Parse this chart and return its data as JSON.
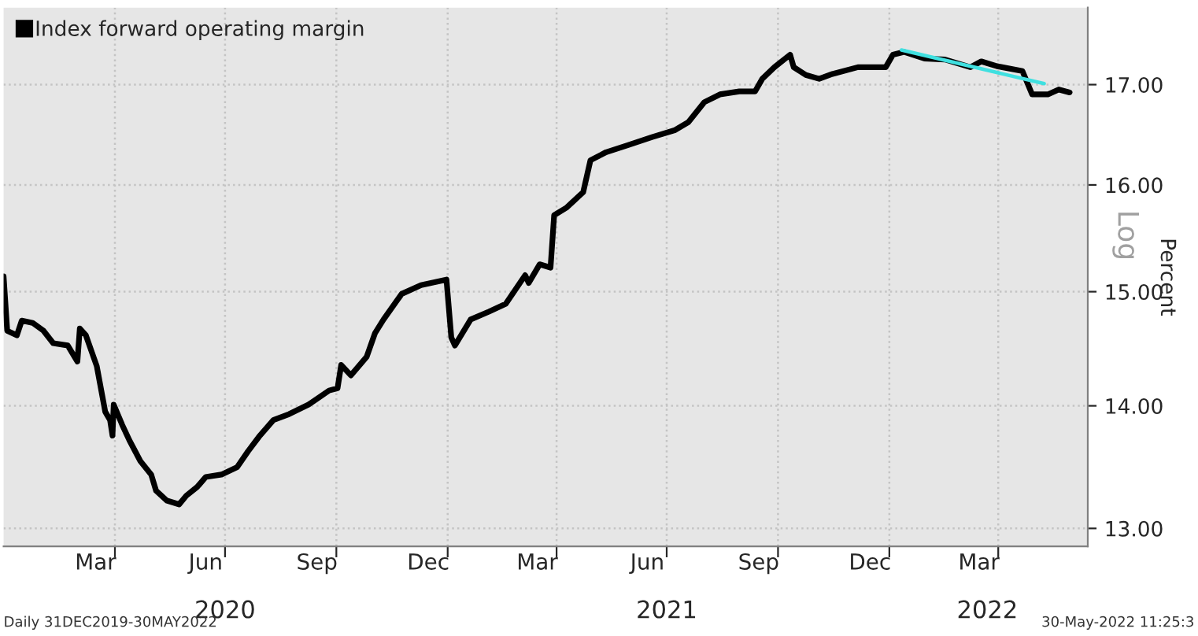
{
  "chart_data": {
    "type": "line",
    "ylabel": "Percent",
    "log": "y",
    "legend": "top left",
    "grid": true,
    "annotations": [
      "Daily 31DEC2019-30MAY2022",
      "30-May-2022 11:25:3",
      "Log"
    ],
    "xlim": [
      "2019-12-31",
      "2022-06-14"
    ],
    "xticks": [
      {
        "value": "2020-03-16",
        "label": "Mar"
      },
      {
        "value": "2020-04-01",
        "label": null
      },
      {
        "value": "2020-06-15",
        "label": "Jun"
      },
      {
        "value": "2020-07-01",
        "label": null
      },
      {
        "value": "2020-09-15",
        "label": "Sep"
      },
      {
        "value": "2020-10-01",
        "label": null
      },
      {
        "value": "2020-12-16",
        "label": "Dec"
      },
      {
        "value": "2021-01-01",
        "label": null
      },
      {
        "value": "2021-03-16",
        "label": "Mar"
      },
      {
        "value": "2021-04-01",
        "label": null
      },
      {
        "value": "2021-06-15",
        "label": "Jun"
      },
      {
        "value": "2021-07-01",
        "label": null
      },
      {
        "value": "2021-09-15",
        "label": "Sep"
      },
      {
        "value": "2021-10-01",
        "label": null
      },
      {
        "value": "2021-12-16",
        "label": "Dec"
      },
      {
        "value": "2022-01-01",
        "label": null
      },
      {
        "value": "2022-03-16",
        "label": "Mar"
      },
      {
        "value": "2022-04-01",
        "label": null
      }
    ],
    "x2lim": [
      "2019-12-31",
      "2022-06-14"
    ],
    "x2ticks": [
      {
        "value": "2020-07-01",
        "label": "2020"
      },
      {
        "value": "2021-07-01",
        "label": "2021"
      },
      {
        "value": "2022-03-23",
        "label": "2022"
      }
    ],
    "ylim": [
      12.86,
      17.81
    ],
    "yticks": [
      {
        "value": 13,
        "label": "13.00"
      },
      {
        "value": 14,
        "label": "14.00"
      },
      {
        "value": 15,
        "label": "15.00"
      },
      {
        "value": 16,
        "label": "16.00"
      },
      {
        "value": 17,
        "label": "17.00"
      }
    ],
    "series": [
      {
        "name": "Index forward operating margin",
        "color": "#000000",
        "x": [
          "2019-12-31",
          "2020-01-03",
          "2020-01-11",
          "2020-01-15",
          "2020-01-24",
          "2020-02-02",
          "2020-02-10",
          "2020-02-22",
          "2020-03-01",
          "2020-03-03",
          "2020-03-08",
          "2020-03-17",
          "2020-03-24",
          "2020-03-28",
          "2020-03-30",
          "2020-03-31",
          "2020-04-07",
          "2020-04-13",
          "2020-04-22",
          "2020-05-01",
          "2020-05-05",
          "2020-05-14",
          "2020-05-24",
          "2020-05-30",
          "2020-06-08",
          "2020-06-15",
          "2020-06-28",
          "2020-07-11",
          "2020-07-20",
          "2020-07-29",
          "2020-08-10",
          "2020-08-23",
          "2020-09-08",
          "2020-09-25",
          "2020-10-02",
          "2020-10-05",
          "2020-10-13",
          "2020-10-26",
          "2020-11-02",
          "2020-11-09",
          "2020-11-24",
          "2020-12-10",
          "2020-12-31",
          "2021-01-04",
          "2021-01-07",
          "2021-01-20",
          "2021-02-04",
          "2021-02-18",
          "2021-03-06",
          "2021-03-09",
          "2021-03-18",
          "2021-03-27",
          "2021-03-30",
          "2021-04-09",
          "2021-04-23",
          "2021-04-29",
          "2021-05-12",
          "2021-05-30",
          "2021-06-19",
          "2021-07-08",
          "2021-07-19",
          "2021-08-01",
          "2021-08-14",
          "2021-08-30",
          "2021-09-12",
          "2021-09-18",
          "2021-09-28",
          "2021-10-11",
          "2021-10-14",
          "2021-10-24",
          "2021-11-04",
          "2021-11-15",
          "2021-12-06",
          "2021-12-29",
          "2022-01-04",
          "2022-01-13",
          "2022-01-30",
          "2022-02-16",
          "2022-03-09",
          "2022-03-18",
          "2022-03-31",
          "2022-04-21",
          "2022-04-29",
          "2022-05-12",
          "2022-05-21",
          "2022-05-30"
        ],
        "values": [
          15.14,
          14.65,
          14.61,
          14.74,
          14.72,
          14.65,
          14.54,
          14.52,
          14.38,
          14.67,
          14.61,
          14.34,
          13.95,
          13.88,
          13.75,
          14.01,
          13.84,
          13.71,
          13.54,
          13.43,
          13.3,
          13.22,
          13.19,
          13.26,
          13.33,
          13.41,
          13.43,
          13.49,
          13.62,
          13.74,
          13.88,
          13.93,
          14.01,
          14.13,
          14.15,
          14.35,
          14.26,
          14.42,
          14.63,
          14.75,
          14.98,
          15.06,
          15.11,
          14.59,
          14.52,
          14.75,
          14.82,
          14.89,
          15.15,
          15.08,
          15.25,
          15.22,
          15.71,
          15.78,
          15.93,
          16.24,
          16.32,
          16.39,
          16.47,
          16.54,
          16.62,
          16.82,
          16.9,
          16.93,
          16.93,
          17.06,
          17.18,
          17.31,
          17.18,
          17.1,
          17.06,
          17.11,
          17.18,
          17.18,
          17.31,
          17.34,
          17.27,
          17.26,
          17.18,
          17.24,
          17.19,
          17.14,
          16.9,
          16.9,
          16.95,
          16.92
        ]
      },
      {
        "color": "#40e0e0",
        "x": [
          "2022-01-11",
          "2022-05-09"
        ],
        "values": [
          17.36,
          17.01
        ]
      }
    ]
  }
}
